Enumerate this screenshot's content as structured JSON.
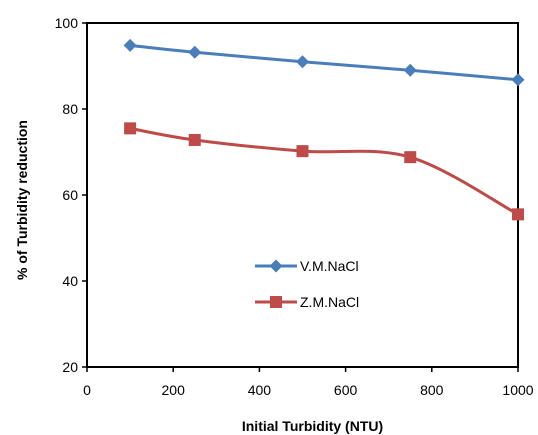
{
  "chart_data": {
    "type": "line",
    "title": "",
    "xlabel": "Initial Turbidity (NTU)",
    "ylabel": "% of Turbidity reduction",
    "xlim": [
      0,
      1000
    ],
    "ylim": [
      20,
      100
    ],
    "xticks": [
      0,
      200,
      400,
      600,
      800,
      1000
    ],
    "yticks": [
      20,
      40,
      60,
      80,
      100
    ],
    "grid": false,
    "legend_position": "center",
    "series": [
      {
        "name": "V.M.NaCl",
        "color": "#4A7EBB",
        "marker": "diamond",
        "x": [
          100,
          250,
          500,
          750,
          1000
        ],
        "y": [
          94.8,
          93.2,
          91.0,
          89.0,
          86.8
        ]
      },
      {
        "name": "Z.M.NaCl",
        "color": "#BE4B48",
        "marker": "square",
        "x": [
          100,
          250,
          500,
          750,
          1000
        ],
        "y": [
          75.5,
          72.8,
          70.2,
          68.8,
          55.5
        ]
      }
    ]
  }
}
